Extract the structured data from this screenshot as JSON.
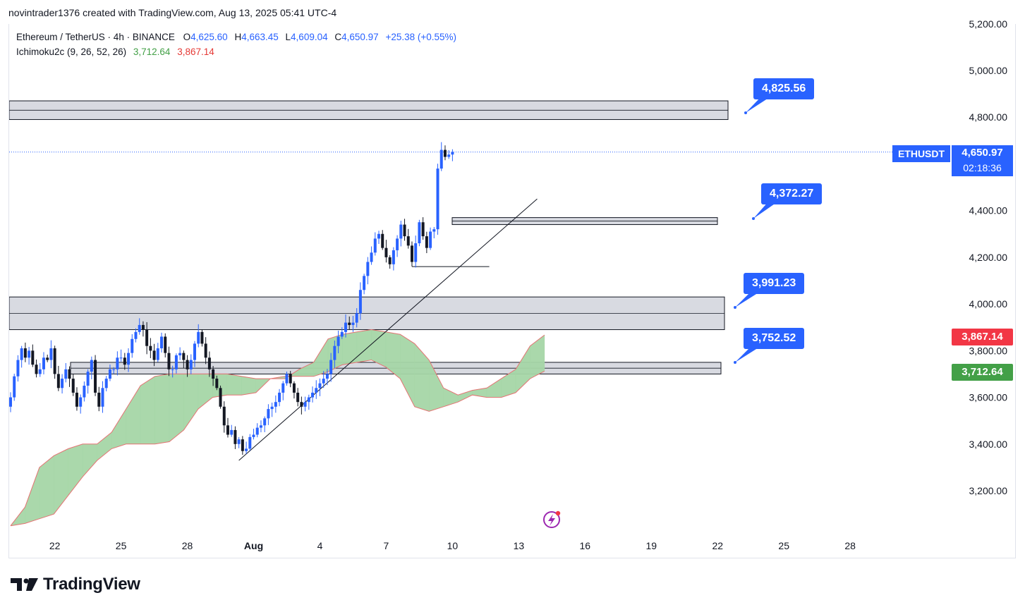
{
  "header": {
    "text": "novintrader1376 created with TradingView.com, Aug 13, 2025 05:41 UTC-4"
  },
  "legend": {
    "symbol": "Ethereum / TetherUS · 4h · BINANCE",
    "o_label": "O",
    "o_value": "4,625.60",
    "h_label": "H",
    "h_value": "4,663.45",
    "l_label": "L",
    "l_value": "4,609.04",
    "c_label": "C",
    "c_value": "4,650.97",
    "change": "+25.38 (+0.55%)",
    "indicator": "Ichimoku2c (9, 26, 52, 26)",
    "ind_value_green": "3,712.64",
    "ind_value_red": "3,867.14"
  },
  "price_badge": {
    "symbol": "ETHUSDT",
    "price": "4,650.97",
    "countdown": "02:18:36"
  },
  "colors": {
    "up": "#2962ff",
    "down": "#131722",
    "cloud": "#a5d6a7",
    "cloud_edge": "#e57373",
    "accent": "#2962ff",
    "red_badge": "#f23645",
    "green_badge": "#43a047"
  },
  "brand": {
    "name": "TradingView"
  },
  "chart_data": {
    "type": "candlestick",
    "title": "Ethereum / TetherUS · 4h · BINANCE",
    "ylim": [
      3050,
      5300
    ],
    "y_ticks": [
      {
        "value": 3200,
        "label": "3,200.00"
      },
      {
        "value": 3400,
        "label": "3,400.00"
      },
      {
        "value": 3600,
        "label": "3,600.00"
      },
      {
        "value": 3800,
        "label": "3,800.00"
      },
      {
        "value": 4000,
        "label": "4,000.00"
      },
      {
        "value": 4200,
        "label": "4,200.00"
      },
      {
        "value": 4400,
        "label": "4,400.00"
      },
      {
        "value": 4800,
        "label": "4,800.00"
      },
      {
        "value": 5000,
        "label": "5,000.00"
      },
      {
        "value": 5200,
        "label": "5,200.00"
      }
    ],
    "x_ticks": [
      {
        "label": "22",
        "bar": 12,
        "bold": false
      },
      {
        "label": "25",
        "bar": 30,
        "bold": false
      },
      {
        "label": "28",
        "bar": 48,
        "bold": false
      },
      {
        "label": "Aug",
        "bar": 66,
        "bold": true
      },
      {
        "label": "4",
        "bar": 84,
        "bold": false
      },
      {
        "label": "7",
        "bar": 102,
        "bold": false
      },
      {
        "label": "10",
        "bar": 120,
        "bold": false
      },
      {
        "label": "13",
        "bar": 138,
        "bold": false
      },
      {
        "label": "16",
        "bar": 156,
        "bold": false
      },
      {
        "label": "19",
        "bar": 174,
        "bold": false
      },
      {
        "label": "22",
        "bar": 192,
        "bold": false
      },
      {
        "label": "25",
        "bar": 210,
        "bold": false
      },
      {
        "label": "28",
        "bar": 228,
        "bold": false
      }
    ],
    "closes": [
      3600,
      3690,
      3760,
      3810,
      3770,
      3800,
      3740,
      3700,
      3720,
      3770,
      3760,
      3810,
      3700,
      3640,
      3680,
      3720,
      3680,
      3620,
      3560,
      3600,
      3650,
      3710,
      3760,
      3620,
      3560,
      3640,
      3680,
      3720,
      3720,
      3770,
      3770,
      3740,
      3790,
      3850,
      3880,
      3910,
      3890,
      3820,
      3800,
      3760,
      3810,
      3860,
      3790,
      3720,
      3720,
      3780,
      3790,
      3760,
      3720,
      3760,
      3830,
      3880,
      3830,
      3770,
      3720,
      3680,
      3640,
      3560,
      3480,
      3440,
      3460,
      3400,
      3420,
      3370,
      3380,
      3430,
      3440,
      3470,
      3480,
      3510,
      3550,
      3560,
      3580,
      3620,
      3660,
      3700,
      3660,
      3620,
      3580,
      3560,
      3580,
      3600,
      3620,
      3640,
      3660,
      3680,
      3700,
      3760,
      3820,
      3860,
      3880,
      3920,
      3910,
      3920,
      3960,
      4060,
      4120,
      4180,
      4220,
      4280,
      4300,
      4240,
      4200,
      4170,
      4230,
      4280,
      4340,
      4290,
      4250,
      4180,
      4260,
      4350,
      4290,
      4240,
      4310,
      4320,
      4580,
      4660,
      4630,
      4640,
      4650.97
    ],
    "cloud_span_a": [
      3050,
      3130,
      3300,
      3350,
      3380,
      3400,
      3400,
      3450,
      3550,
      3650,
      3690,
      3700,
      3700,
      3700,
      3700,
      3700,
      3690,
      3680,
      3680,
      3680,
      3720,
      3750,
      3850,
      3870,
      3880,
      3890,
      3880,
      3870,
      3830,
      3760,
      3640,
      3610,
      3630,
      3640,
      3680,
      3720,
      3820,
      3867.14
    ],
    "cloud_span_b": [
      3050,
      3060,
      3080,
      3100,
      3180,
      3260,
      3330,
      3380,
      3400,
      3400,
      3400,
      3410,
      3460,
      3550,
      3600,
      3610,
      3610,
      3620,
      3680,
      3690,
      3690,
      3690,
      3710,
      3740,
      3750,
      3760,
      3730,
      3680,
      3560,
      3540,
      3560,
      3580,
      3610,
      3600,
      3600,
      3620,
      3680,
      3712.64
    ],
    "zones": [
      {
        "low": 4790,
        "high": 4870
      },
      {
        "low": 4340,
        "high": 4370
      },
      {
        "low": 3890,
        "high": 4030
      },
      {
        "low": 3700,
        "high": 3750
      }
    ],
    "trendline": {
      "from": {
        "bar": 62,
        "value": 3330
      },
      "to": {
        "bar": 143,
        "value": 4450
      }
    },
    "hline": {
      "from_bar": 109,
      "to_bar": 130,
      "value": 4160
    },
    "callouts": [
      {
        "label": "4,825.56",
        "value": 4825.56
      },
      {
        "label": "4,372.27",
        "value": 4372.27
      },
      {
        "label": "3,991.23",
        "value": 3991.23
      },
      {
        "label": "3,752.52",
        "value": 3752.52
      }
    ],
    "last_price": 4650.97
  }
}
